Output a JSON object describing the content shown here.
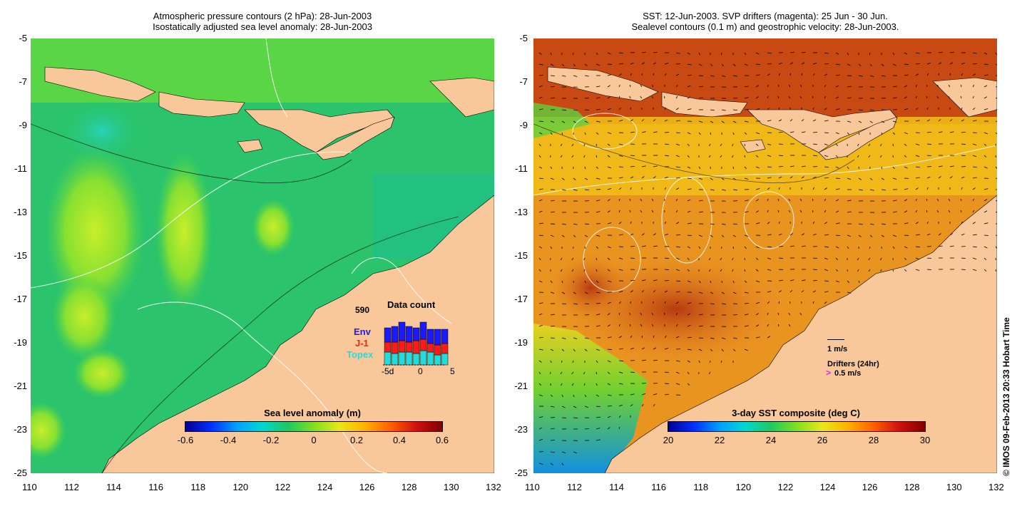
{
  "left_panel": {
    "title_line1": "Atmospheric pressure contours (2 hPa): 28-Jun-2003",
    "title_line2": "Isostatically adjusted sea level anomaly: 28-Jun-2003",
    "colorbar": {
      "title": "Sea level anomaly (m)",
      "ticks": [
        "-0.6",
        "-0.4",
        "-0.2",
        "0",
        "0.2",
        "0.4",
        "0.6"
      ],
      "range": [
        -0.6,
        0.6
      ]
    },
    "inset": {
      "total": "590",
      "title": "Data count",
      "series": [
        {
          "name": "Env",
          "color": "#1a1aff"
        },
        {
          "name": "J-1",
          "color": "#ff1a1a"
        },
        {
          "name": "Topex",
          "color": "#22dddd"
        }
      ],
      "x_ticks": [
        "-5d",
        "0",
        "5"
      ]
    }
  },
  "right_panel": {
    "title_line1": "SST: 12-Jun-2003. SVP drifters (magenta): 25 Jun - 30 Jun.",
    "title_line2": "Sealevel contours (0.1 m) and geostrophic velocity: 28-Jun-2003.",
    "colorbar": {
      "title": "3-day SST composite (deg C)",
      "ticks": [
        "20",
        "22",
        "24",
        "26",
        "28",
        "30"
      ],
      "range": [
        20,
        30
      ]
    },
    "velocity_scale_label": "1 m/s",
    "drifters_label": "Drifters (24hr)",
    "drifter_scale_label": "0.5 m/s"
  },
  "axes": {
    "x_ticks": [
      "110",
      "112",
      "114",
      "116",
      "118",
      "120",
      "122",
      "124",
      "126",
      "128",
      "130",
      "132"
    ],
    "y_ticks": [
      "-5",
      "-7",
      "-9",
      "-11",
      "-13",
      "-15",
      "-17",
      "-19",
      "-21",
      "-23",
      "-25"
    ]
  },
  "credit": "© IMOS 09-Feb-2013 20:33 Hobart Time",
  "colors": {
    "land": "#f9c89a",
    "ssh_base": "#22c46a",
    "sst_base": "#f0a020"
  }
}
